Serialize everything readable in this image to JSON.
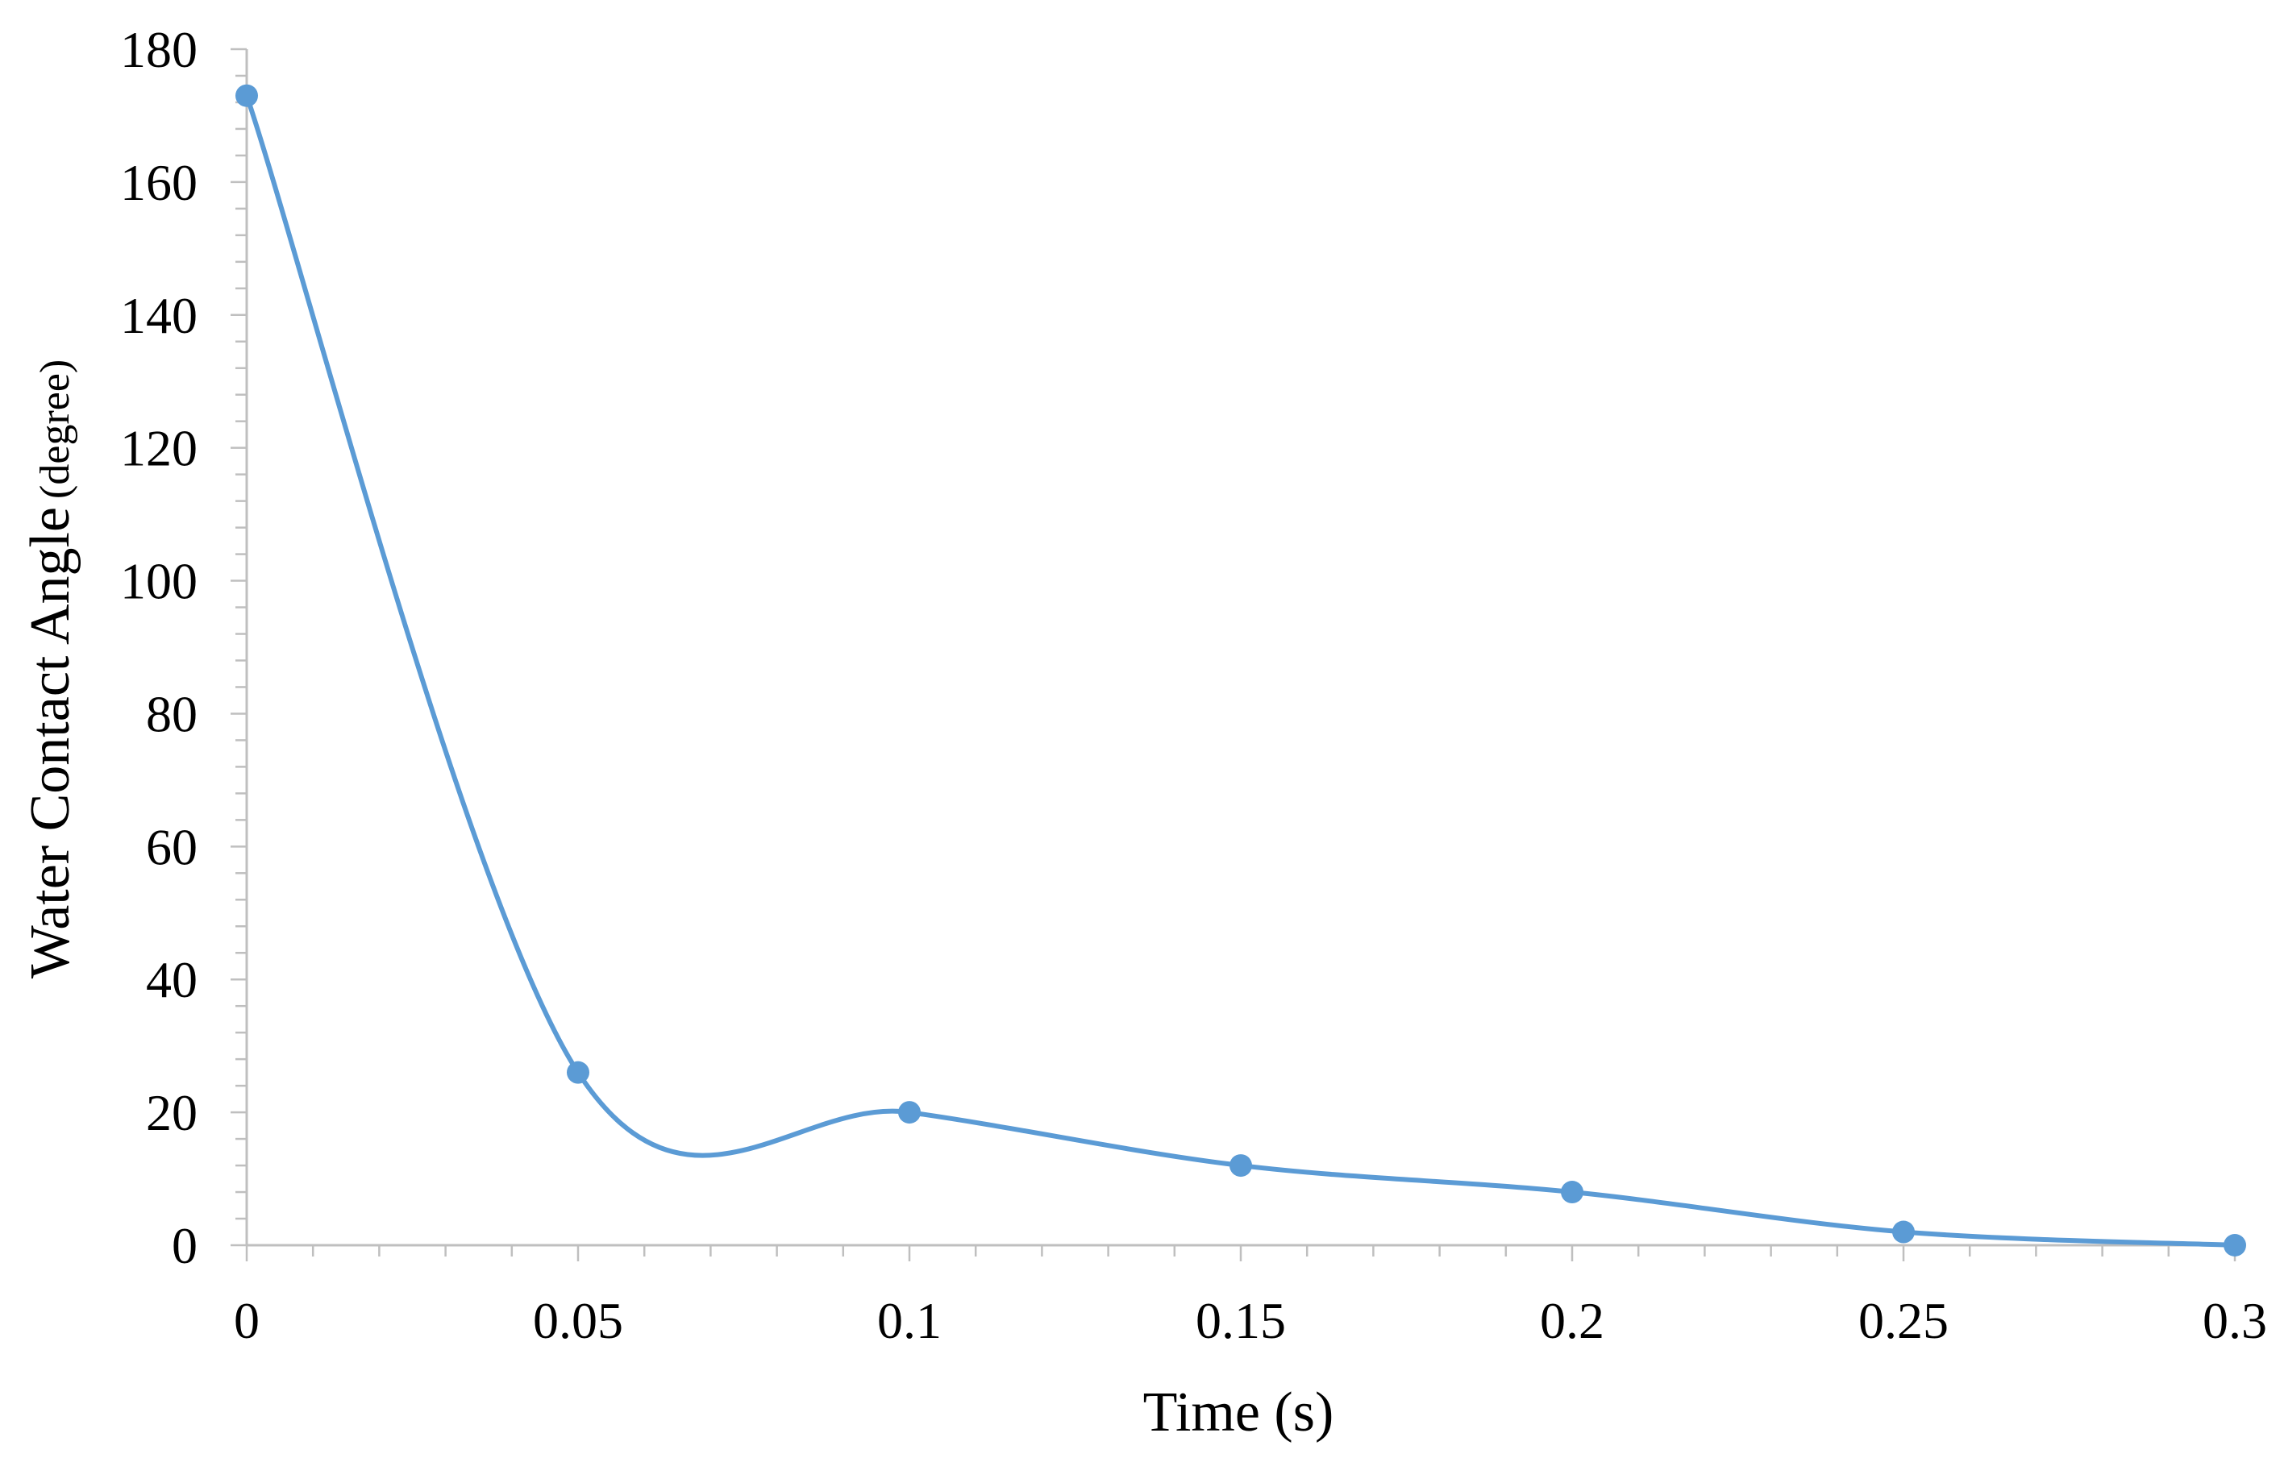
{
  "chart_data": {
    "type": "line",
    "smooth": true,
    "title": "",
    "xlabel": "Time (s)",
    "ylabel_main": "Water Contact Angle",
    "ylabel_unit": "(degree)",
    "xlim": [
      0,
      0.3
    ],
    "ylim": [
      0,
      180
    ],
    "x_ticks": [
      0,
      0.05,
      0.1,
      0.15,
      0.2,
      0.25,
      0.3
    ],
    "x_tick_labels": [
      "0",
      "0.05",
      "0.1",
      "0.15",
      "0.2",
      "0.25",
      "0.3"
    ],
    "y_ticks": [
      0,
      20,
      40,
      60,
      80,
      100,
      120,
      140,
      160,
      180
    ],
    "y_tick_labels": [
      "0",
      "20",
      "40",
      "60",
      "80",
      "100",
      "120",
      "140",
      "160",
      "180"
    ],
    "grid": false,
    "legend": "none",
    "series": [
      {
        "color": "#5B9BD5",
        "x": [
          0,
          0.05,
          0.1,
          0.15,
          0.2,
          0.25,
          0.3
        ],
        "y": [
          173,
          26,
          20,
          12,
          8,
          2,
          0
        ]
      }
    ]
  }
}
